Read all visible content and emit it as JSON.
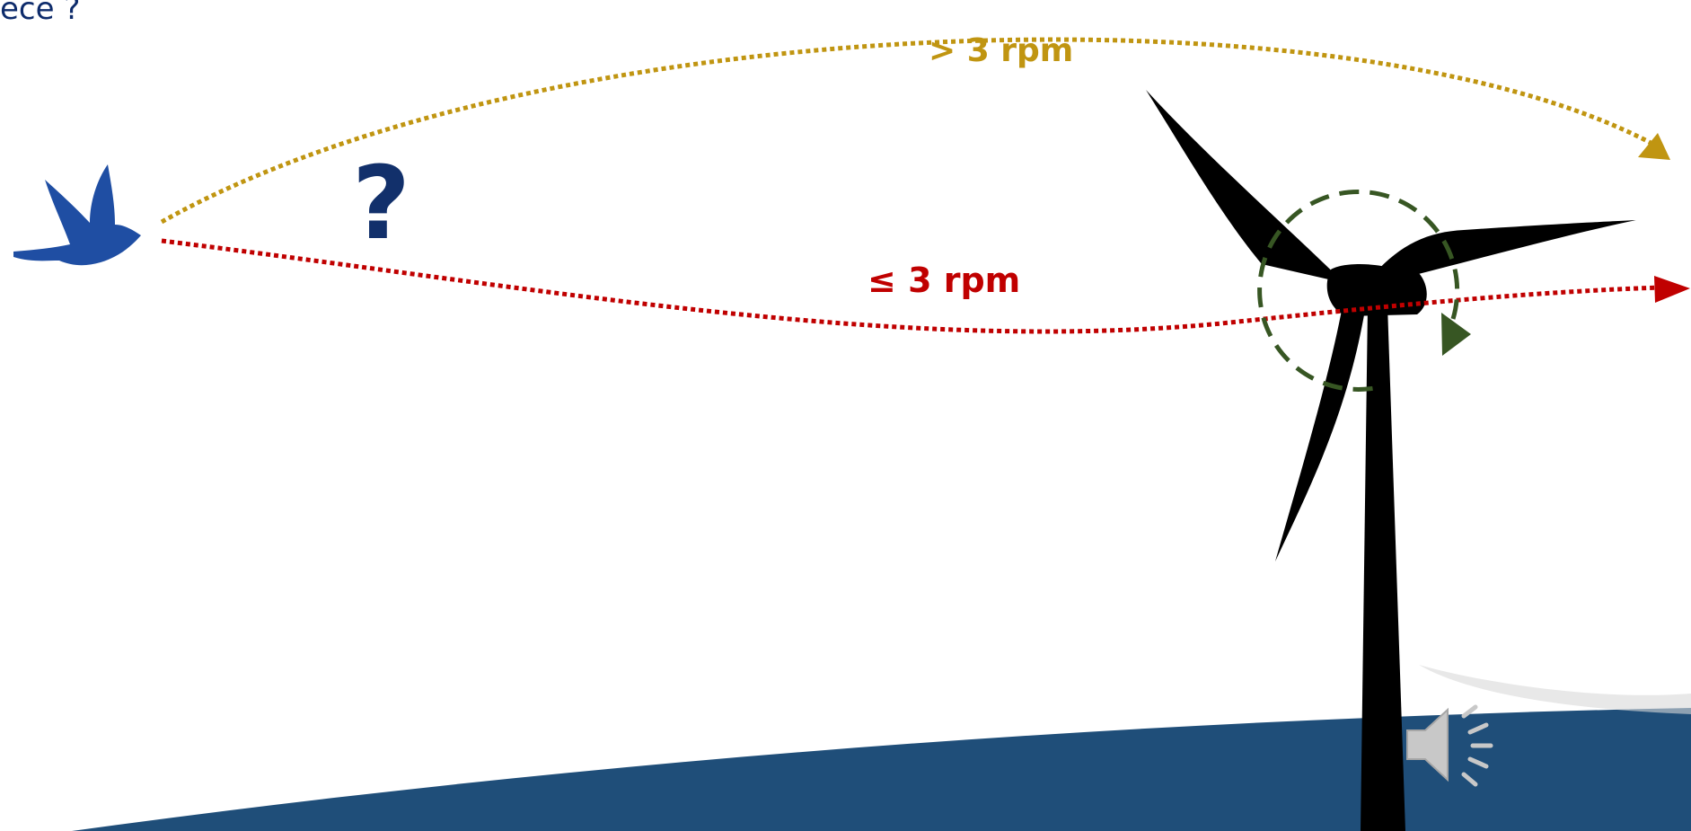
{
  "title_fragment": "ece ?",
  "question_mark": "?",
  "paths": {
    "high": {
      "label": "> 3 rpm",
      "color": "#c09511"
    },
    "low": {
      "label": "≤ 3 rpm",
      "color": "#c00000"
    }
  },
  "rotation_color": "#375623",
  "bird_color": "#1f4ea3",
  "sea_color": "#1f4e79",
  "turbine_color": "#000000",
  "icons": [
    "bird-icon",
    "wind-turbine-icon",
    "speaker-icon"
  ]
}
